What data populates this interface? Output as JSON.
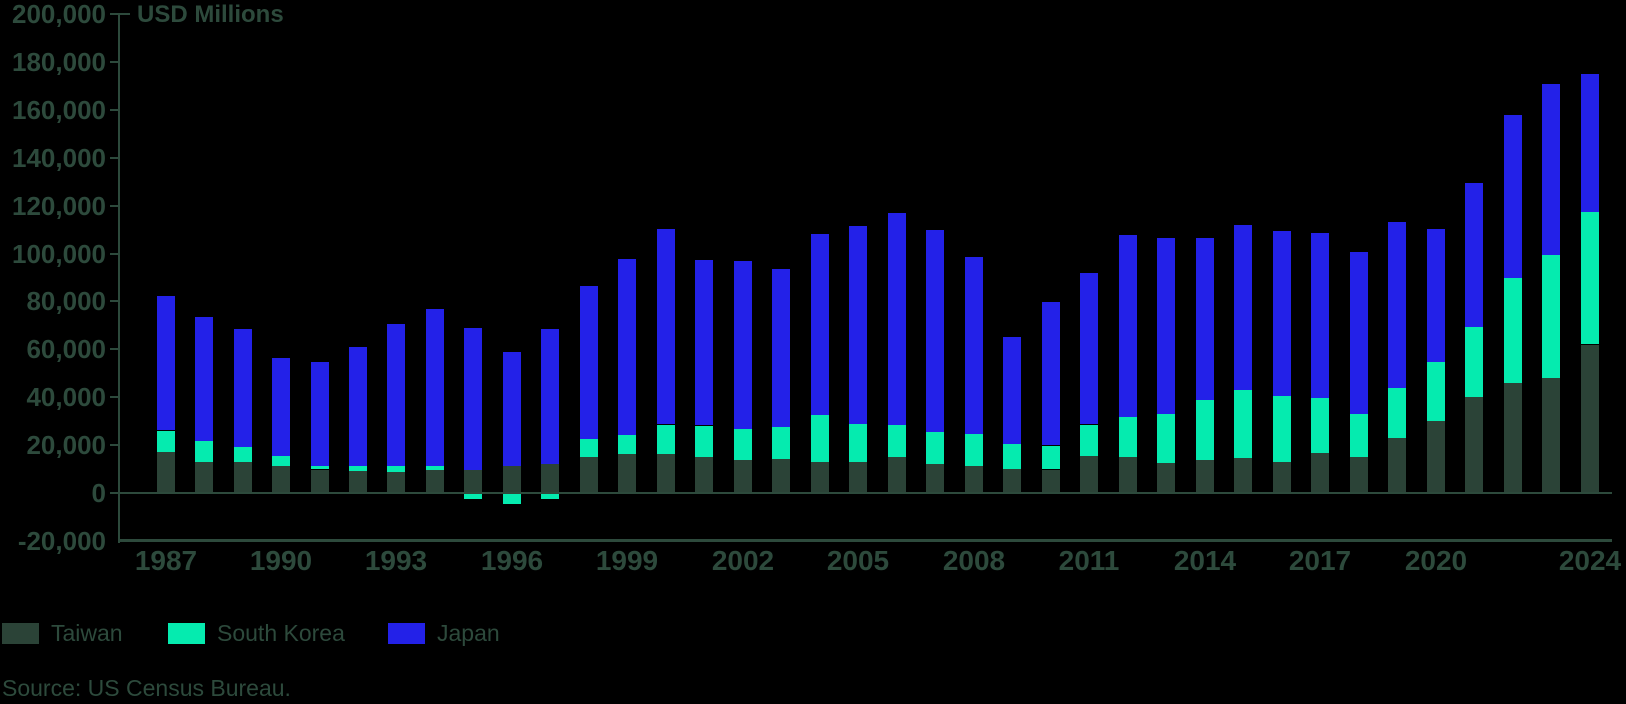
{
  "source": "Source: US Census Bureau.",
  "colors": {
    "background": "#000000",
    "text": "#2D4A3C",
    "axis": "#2D4A3C"
  },
  "axis": {
    "y_ticks": [
      "200,000",
      "180,000",
      "160,000",
      "140,000",
      "120,000",
      "100,000",
      "80,000",
      "60,000",
      "40,000",
      "20,000",
      "0",
      "-20,000"
    ],
    "y_max": 200000,
    "y_min": -20000,
    "y_step": 20000
  },
  "chart_data": {
    "type": "bar",
    "stacked": true,
    "title": "USD Millions",
    "ylabel": "USD Millions",
    "xlabel": "",
    "ylim": [
      -20000,
      200000
    ],
    "y_step": 20000,
    "grid": false,
    "legend_position": "bottom-left",
    "x": [
      1987,
      1988,
      1989,
      1990,
      1991,
      1992,
      1993,
      1994,
      1995,
      1996,
      1997,
      1998,
      1999,
      2000,
      2001,
      2002,
      2003,
      2004,
      2005,
      2006,
      2007,
      2008,
      2009,
      2010,
      2011,
      2012,
      2013,
      2014,
      2015,
      2016,
      2017,
      2018,
      2019,
      2020,
      2021,
      2022,
      2023,
      2024
    ],
    "x_tick_labels": [
      "1987",
      "1990",
      "1993",
      "1996",
      "1999",
      "2002",
      "2005",
      "2008",
      "2011",
      "2014",
      "2017",
      "2020",
      "2024"
    ],
    "series": [
      {
        "name": "Taiwan",
        "color": "#2B4337",
        "values": [
          17200,
          12900,
          13000,
          11200,
          9800,
          9300,
          8900,
          9600,
          9700,
          11500,
          12300,
          15000,
          16100,
          16100,
          15200,
          13800,
          14200,
          12900,
          12800,
          15200,
          12000,
          11200,
          9900,
          9800,
          15400,
          15000,
          12400,
          13900,
          14800,
          13000,
          16700,
          15200,
          23100,
          29900,
          40200,
          45800,
          48000,
          62000
        ]
      },
      {
        "name": "South Korea",
        "color": "#05EBAF",
        "values": [
          8900,
          8900,
          6300,
          4100,
          1500,
          2000,
          2300,
          1600,
          -2000,
          -4000,
          -2000,
          7500,
          8200,
          12500,
          13000,
          13000,
          13200,
          19800,
          16100,
          13300,
          13400,
          13400,
          10600,
          10000,
          13200,
          16600,
          20700,
          25000,
          28300,
          27700,
          22900,
          17900,
          20700,
          24900,
          29000,
          44100,
          51400,
          55500
        ]
      },
      {
        "name": "Japan",
        "color": "#2321E8",
        "values": [
          56300,
          51800,
          49100,
          41100,
          43400,
          49600,
          59400,
          65700,
          59100,
          47600,
          56100,
          64000,
          73400,
          81600,
          69000,
          70000,
          66000,
          75600,
          82500,
          88500,
          84300,
          74100,
          44700,
          60100,
          63200,
          76300,
          73300,
          67600,
          68900,
          68900,
          68800,
          67600,
          69200,
          55300,
          60200,
          68000,
          71200,
          57500
        ]
      }
    ]
  }
}
